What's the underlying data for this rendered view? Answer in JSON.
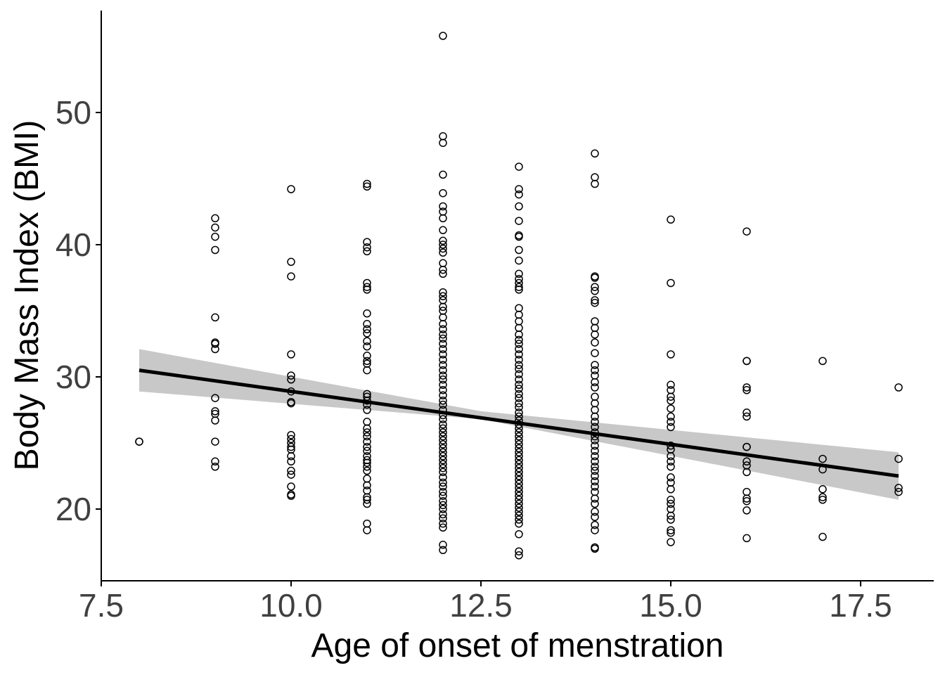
{
  "chart_data": {
    "type": "scatter",
    "title": "",
    "xlabel": "Age of onset of menstration",
    "ylabel": "Body Mass Index (BMI)",
    "xlim": [
      7.5,
      18.5
    ],
    "ylim": [
      14.5,
      58
    ],
    "xticks": [
      7.5,
      10.0,
      12.5,
      15.0,
      17.5
    ],
    "xtick_labels": [
      "7.5",
      "10.0",
      "12.5",
      "15.0",
      "17.5"
    ],
    "yticks": [
      20,
      30,
      40,
      50
    ],
    "ytick_labels": [
      "20",
      "30",
      "40",
      "50"
    ],
    "grid": false,
    "legend": "none",
    "colors": {
      "points": "#000000",
      "line": "#000000",
      "band": "#c8c8c8",
      "tick_text": "#404040"
    },
    "trend_line": {
      "type": "linear",
      "x": [
        8,
        18
      ],
      "y": [
        30.5,
        22.5
      ],
      "ci_lower": [
        28.9,
        20.7
      ],
      "ci_upper": [
        32.1,
        24.3
      ],
      "ci_mid": {
        "x": 12.5,
        "lower": 26.8,
        "upper": 27.4
      }
    },
    "points_by_x": [
      {
        "x": 8,
        "y": [
          25.1,
          25.1
        ]
      },
      {
        "x": 9,
        "y": [
          42.0,
          41.3,
          40.6,
          39.6,
          34.5,
          32.6,
          32.5,
          32.1,
          28.4,
          27.4,
          27.2,
          26.7,
          25.1,
          23.6,
          23.2
        ]
      },
      {
        "x": 10,
        "y": [
          44.2,
          38.7,
          37.6,
          31.7,
          30.1,
          29.8,
          28.9,
          28.1,
          28.0,
          25.6,
          25.3,
          25.0,
          24.7,
          24.5,
          24.0,
          23.6,
          22.9,
          22.6,
          21.7,
          21.1,
          21.0
        ]
      },
      {
        "x": 11,
        "y": [
          44.6,
          44.4,
          40.2,
          39.8,
          39.5,
          37.1,
          36.8,
          36.6,
          34.8,
          34.0,
          33.6,
          33.3,
          32.7,
          32.3,
          31.6,
          31.2,
          31.0,
          30.5,
          28.7,
          28.5,
          28.2,
          27.9,
          27.5,
          26.6,
          26.1,
          25.8,
          25.5,
          25.1,
          24.7,
          24.4,
          24.0,
          23.7,
          23.5,
          23.2,
          22.9,
          22.3,
          21.8,
          21.4,
          20.9,
          20.7,
          20.4,
          18.9,
          18.4
        ]
      },
      {
        "x": 12,
        "y": [
          55.8,
          48.2,
          47.7,
          45.3,
          43.9,
          42.9,
          42.5,
          42.0,
          41.1,
          40.3,
          40.0,
          39.7,
          39.4,
          38.6,
          38.1,
          37.8,
          36.4,
          36.1,
          35.8,
          35.3,
          35.0,
          34.5,
          34.0,
          33.6,
          33.2,
          32.9,
          32.5,
          32.1,
          31.7,
          31.3,
          30.9,
          30.5,
          30.1,
          29.8,
          29.4,
          29.0,
          28.6,
          28.2,
          27.9,
          27.5,
          27.1,
          26.8,
          26.4,
          26.1,
          25.8,
          25.5,
          25.2,
          24.9,
          24.6,
          24.3,
          24.0,
          23.7,
          23.4,
          23.1,
          22.8,
          22.4,
          22.0,
          21.7,
          21.3,
          21.0,
          20.6,
          20.3,
          20.0,
          19.6,
          19.3,
          18.9,
          18.6,
          17.3,
          16.9
        ]
      },
      {
        "x": 13,
        "y": [
          45.9,
          44.2,
          43.8,
          42.9,
          41.8,
          40.7,
          40.6,
          39.6,
          38.8,
          37.8,
          37.4,
          37.1,
          36.8,
          36.6,
          35.2,
          34.7,
          34.2,
          33.7,
          33.2,
          32.8,
          32.5,
          32.1,
          31.7,
          31.3,
          30.9,
          30.6,
          30.2,
          29.8,
          29.4,
          29.1,
          28.7,
          28.4,
          28.0,
          27.7,
          27.3,
          27.0,
          26.7,
          26.4,
          26.1,
          25.8,
          25.5,
          25.2,
          24.9,
          24.6,
          24.3,
          24.0,
          23.7,
          23.4,
          23.1,
          22.8,
          22.5,
          22.2,
          21.9,
          21.6,
          21.3,
          21.0,
          20.7,
          20.4,
          20.1,
          19.8,
          19.5,
          19.2,
          18.9,
          18.1,
          16.8,
          16.5
        ]
      },
      {
        "x": 14,
        "y": [
          46.9,
          45.1,
          44.6,
          37.6,
          37.5,
          36.8,
          36.5,
          35.8,
          35.6,
          34.2,
          33.7,
          33.2,
          32.6,
          31.8,
          30.9,
          30.5,
          30.1,
          29.6,
          29.2,
          28.5,
          28.0,
          27.5,
          27.0,
          26.6,
          26.2,
          25.8,
          25.5,
          25.2,
          24.8,
          24.4,
          24.0,
          23.6,
          23.2,
          22.9,
          22.5,
          22.1,
          21.7,
          21.3,
          20.8,
          20.4,
          19.8,
          19.4,
          18.8,
          18.4,
          17.1,
          17.0
        ]
      },
      {
        "x": 15,
        "y": [
          41.9,
          37.1,
          31.7,
          29.4,
          29.0,
          28.5,
          28.2,
          27.6,
          27.0,
          26.6,
          26.2,
          24.8,
          24.5,
          24.0,
          23.6,
          23.2,
          22.4,
          22.0,
          21.5,
          20.7,
          20.4,
          20.0,
          19.5,
          19.2,
          18.4,
          18.2,
          17.5
        ]
      },
      {
        "x": 16,
        "y": [
          41.0,
          31.2,
          31.2,
          29.2,
          29.0,
          27.3,
          27.0,
          24.7,
          24.7,
          23.6,
          23.3,
          22.8,
          21.3,
          20.8,
          20.6,
          19.9,
          17.8
        ]
      },
      {
        "x": 17,
        "y": [
          31.2,
          23.8,
          23.0,
          21.5,
          20.9,
          20.7,
          17.9
        ]
      },
      {
        "x": 18,
        "y": [
          29.2,
          23.8,
          21.6,
          21.3
        ]
      }
    ]
  }
}
